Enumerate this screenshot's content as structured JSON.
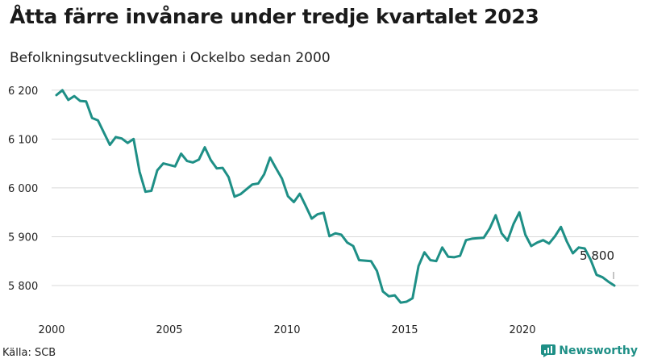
{
  "title": "Åtta färre invånare under tredje kvartalet 2023",
  "subtitle": "Befolkningsutvecklingen i Ockelbo sedan 2000",
  "source": "Källa: SCB",
  "brand": "Newsworthy",
  "colors": {
    "line": "#1e8f86",
    "grid": "#d9d9d9",
    "brand": "#1e8f86"
  },
  "chart_data": {
    "type": "line",
    "title": "Åtta färre invånare under tredje kvartalet 2023",
    "subtitle": "Befolkningsutvecklingen i Ockelbo sedan 2000",
    "xlabel": "",
    "ylabel": "",
    "x_start": 2000,
    "xticks": [
      2000,
      2005,
      2010,
      2015,
      2020
    ],
    "ylim": [
      5780,
      6210
    ],
    "yticks": [
      5800,
      5900,
      6000,
      6100,
      6200
    ],
    "ytick_labels": [
      "5 800",
      "5 900",
      "6 000",
      "6 100",
      "6 200"
    ],
    "grid": true,
    "last_value_label": "5 800",
    "series": [
      {
        "values": [
          6190,
          6200,
          6180,
          6188,
          6178,
          6177,
          6143,
          6138,
          6113,
          6088,
          6104,
          6101,
          6092,
          6100,
          6033,
          5992,
          5994,
          6036,
          6050,
          6047,
          6044,
          6070,
          6055,
          6052,
          6058,
          6083,
          6057,
          6040,
          6041,
          6022,
          5982,
          5987,
          5997,
          6007,
          6009,
          6028,
          6062,
          6040,
          6019,
          5983,
          5971,
          5988,
          5963,
          5937,
          5946,
          5949,
          5901,
          5907,
          5904,
          5888,
          5881,
          5852,
          5851,
          5850,
          5830,
          5788,
          5778,
          5780,
          5765,
          5767,
          5774,
          5840,
          5868,
          5852,
          5850,
          5878,
          5859,
          5858,
          5861,
          5893,
          5896,
          5897,
          5898,
          5917,
          5944,
          5907,
          5892,
          5926,
          5950,
          5904,
          5881,
          5888,
          5893,
          5886,
          5901,
          5920,
          5890,
          5866,
          5878,
          5876,
          5853,
          5822,
          5817,
          5808,
          5800
        ]
      }
    ]
  }
}
